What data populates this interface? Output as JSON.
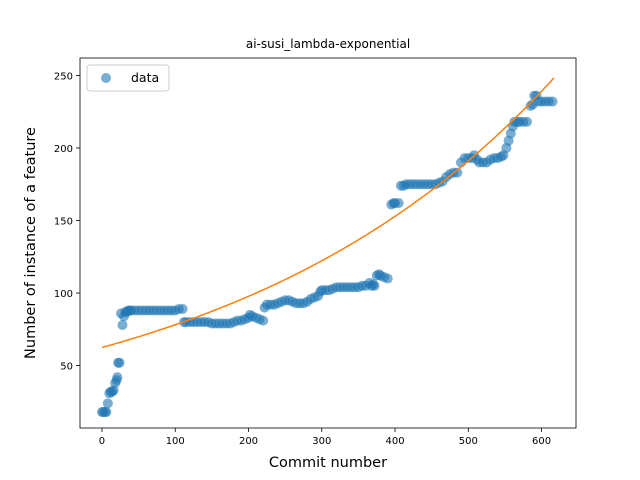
{
  "chart_data": {
    "type": "scatter",
    "title": "ai-susi_lambda-exponential",
    "xlabel": "Commit number",
    "ylabel": "Number of instance of a feature",
    "xlim": [
      -30,
      647
    ],
    "ylim": [
      7,
      262
    ],
    "xticks": [
      0,
      100,
      200,
      300,
      400,
      500,
      600
    ],
    "yticks": [
      50,
      100,
      150,
      200,
      250
    ],
    "legend": {
      "placement": "top-left",
      "entries": [
        "data"
      ]
    },
    "grid": false,
    "colors": {
      "data": "#1f77b4",
      "fit": "#ff7f0e"
    },
    "series": [
      {
        "name": "data",
        "kind": "scatter",
        "points": [
          [
            0,
            18
          ],
          [
            2,
            18
          ],
          [
            4,
            18
          ],
          [
            6,
            18
          ],
          [
            8,
            24
          ],
          [
            10,
            31
          ],
          [
            12,
            32
          ],
          [
            14,
            32
          ],
          [
            16,
            33
          ],
          [
            18,
            38
          ],
          [
            20,
            40
          ],
          [
            21,
            42
          ],
          [
            22,
            52
          ],
          [
            24,
            52
          ],
          [
            26,
            86
          ],
          [
            28,
            78
          ],
          [
            30,
            84
          ],
          [
            32,
            87
          ],
          [
            34,
            87
          ],
          [
            36,
            88
          ],
          [
            38,
            88
          ],
          [
            40,
            88
          ],
          [
            45,
            88
          ],
          [
            50,
            88
          ],
          [
            55,
            88
          ],
          [
            60,
            88
          ],
          [
            65,
            88
          ],
          [
            70,
            88
          ],
          [
            75,
            88
          ],
          [
            80,
            88
          ],
          [
            85,
            88
          ],
          [
            90,
            88
          ],
          [
            95,
            88
          ],
          [
            100,
            88
          ],
          [
            105,
            89
          ],
          [
            110,
            89
          ],
          [
            112,
            80
          ],
          [
            115,
            80
          ],
          [
            120,
            80
          ],
          [
            125,
            80
          ],
          [
            130,
            80
          ],
          [
            135,
            80
          ],
          [
            140,
            80
          ],
          [
            145,
            80
          ],
          [
            150,
            79
          ],
          [
            155,
            79
          ],
          [
            160,
            79
          ],
          [
            165,
            79
          ],
          [
            170,
            79
          ],
          [
            175,
            79
          ],
          [
            180,
            80
          ],
          [
            185,
            81
          ],
          [
            190,
            81
          ],
          [
            195,
            82
          ],
          [
            200,
            83
          ],
          [
            202,
            85
          ],
          [
            205,
            84
          ],
          [
            210,
            83
          ],
          [
            215,
            82
          ],
          [
            220,
            81
          ],
          [
            222,
            90
          ],
          [
            225,
            92
          ],
          [
            230,
            92
          ],
          [
            235,
            92
          ],
          [
            240,
            93
          ],
          [
            245,
            94
          ],
          [
            250,
            95
          ],
          [
            255,
            95
          ],
          [
            260,
            94
          ],
          [
            265,
            93
          ],
          [
            270,
            93
          ],
          [
            275,
            93
          ],
          [
            280,
            94
          ],
          [
            285,
            96
          ],
          [
            290,
            97
          ],
          [
            295,
            98
          ],
          [
            298,
            101
          ],
          [
            300,
            102
          ],
          [
            305,
            102
          ],
          [
            310,
            102
          ],
          [
            315,
            103
          ],
          [
            320,
            104
          ],
          [
            325,
            104
          ],
          [
            330,
            104
          ],
          [
            335,
            104
          ],
          [
            340,
            104
          ],
          [
            345,
            104
          ],
          [
            350,
            104
          ],
          [
            355,
            105
          ],
          [
            360,
            105
          ],
          [
            365,
            107
          ],
          [
            368,
            105
          ],
          [
            370,
            106
          ],
          [
            372,
            105
          ],
          [
            375,
            112
          ],
          [
            378,
            113
          ],
          [
            380,
            112
          ],
          [
            385,
            111
          ],
          [
            390,
            110
          ],
          [
            395,
            161
          ],
          [
            398,
            162
          ],
          [
            400,
            162
          ],
          [
            405,
            162
          ],
          [
            408,
            174
          ],
          [
            412,
            174
          ],
          [
            415,
            175
          ],
          [
            420,
            175
          ],
          [
            425,
            175
          ],
          [
            430,
            175
          ],
          [
            435,
            175
          ],
          [
            440,
            175
          ],
          [
            445,
            175
          ],
          [
            450,
            175
          ],
          [
            455,
            175
          ],
          [
            460,
            176
          ],
          [
            465,
            177
          ],
          [
            470,
            180
          ],
          [
            475,
            182
          ],
          [
            480,
            183
          ],
          [
            485,
            183
          ],
          [
            490,
            190
          ],
          [
            495,
            193
          ],
          [
            500,
            193
          ],
          [
            505,
            193
          ],
          [
            508,
            195
          ],
          [
            512,
            192
          ],
          [
            515,
            190
          ],
          [
            520,
            190
          ],
          [
            525,
            190
          ],
          [
            530,
            192
          ],
          [
            535,
            193
          ],
          [
            540,
            193
          ],
          [
            545,
            194
          ],
          [
            548,
            195
          ],
          [
            552,
            200
          ],
          [
            555,
            205
          ],
          [
            558,
            210
          ],
          [
            561,
            215
          ],
          [
            563,
            218
          ],
          [
            567,
            218
          ],
          [
            570,
            218
          ],
          [
            575,
            218
          ],
          [
            580,
            218
          ],
          [
            585,
            229
          ],
          [
            588,
            230
          ],
          [
            590,
            236
          ],
          [
            593,
            236
          ],
          [
            596,
            232
          ],
          [
            600,
            232
          ],
          [
            605,
            232
          ],
          [
            610,
            232
          ],
          [
            615,
            232
          ]
        ]
      },
      {
        "name": "",
        "kind": "line",
        "model": "exponential",
        "a": 62.5,
        "b": 0.002236,
        "x_range": [
          0,
          617
        ]
      }
    ]
  }
}
